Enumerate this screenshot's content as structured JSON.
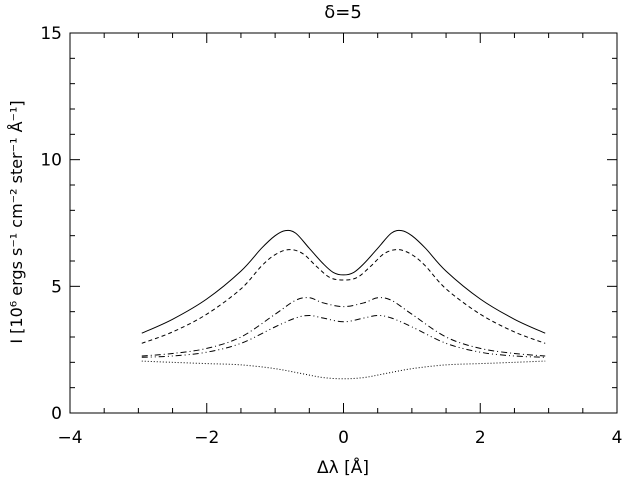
{
  "chart_data": {
    "type": "line",
    "title": "δ=5",
    "xlabel": "Δλ [Å]",
    "ylabel": "I [10⁶ ergs s⁻¹ cm⁻² ster⁻¹ Å⁻¹]",
    "xlim": [
      -4,
      4
    ],
    "ylim": [
      0,
      15
    ],
    "xticks": [
      -4,
      -2,
      0,
      2,
      4
    ],
    "xtick_labels": [
      "−4",
      "−2",
      "0",
      "2",
      "4"
    ],
    "yticks": [
      0,
      5,
      10,
      15
    ],
    "ytick_labels": [
      "0",
      "5",
      "10",
      "15"
    ],
    "grid": false,
    "legend": "none",
    "series": [
      {
        "style": "solid",
        "x": [
          -2.95,
          -2.5,
          -2.0,
          -1.5,
          -1.2,
          -1.0,
          -0.85,
          -0.7,
          -0.5,
          -0.3,
          -0.15,
          0.0,
          0.15,
          0.3,
          0.5,
          0.7,
          0.85,
          1.0,
          1.2,
          1.5,
          2.0,
          2.5,
          2.95
        ],
        "y": [
          3.15,
          3.7,
          4.5,
          5.6,
          6.5,
          7.0,
          7.2,
          7.1,
          6.5,
          5.9,
          5.55,
          5.45,
          5.55,
          5.9,
          6.5,
          7.1,
          7.2,
          7.0,
          6.5,
          5.6,
          4.5,
          3.7,
          3.15
        ]
      },
      {
        "style": "dashed",
        "x": [
          -2.95,
          -2.5,
          -2.0,
          -1.5,
          -1.2,
          -1.0,
          -0.8,
          -0.6,
          -0.4,
          -0.2,
          0.0,
          0.2,
          0.4,
          0.6,
          0.8,
          1.0,
          1.2,
          1.5,
          2.0,
          2.5,
          2.95
        ],
        "y": [
          2.75,
          3.2,
          3.9,
          4.9,
          5.8,
          6.25,
          6.45,
          6.3,
          5.8,
          5.35,
          5.25,
          5.35,
          5.8,
          6.3,
          6.45,
          6.25,
          5.8,
          4.9,
          3.9,
          3.2,
          2.75
        ]
      },
      {
        "style": "dash-dot",
        "x": [
          -2.95,
          -2.5,
          -2.0,
          -1.5,
          -1.0,
          -0.7,
          -0.5,
          -0.3,
          0.0,
          0.3,
          0.5,
          0.7,
          1.0,
          1.5,
          2.0,
          2.5,
          2.95
        ],
        "y": [
          2.25,
          2.35,
          2.55,
          3.0,
          3.9,
          4.45,
          4.55,
          4.35,
          4.2,
          4.35,
          4.55,
          4.45,
          3.9,
          3.0,
          2.55,
          2.35,
          2.25
        ]
      },
      {
        "style": "dash-dot-dot",
        "x": [
          -2.95,
          -2.5,
          -2.0,
          -1.5,
          -1.0,
          -0.7,
          -0.5,
          -0.3,
          0.0,
          0.3,
          0.5,
          0.7,
          1.0,
          1.5,
          2.0,
          2.5,
          2.95
        ],
        "y": [
          2.2,
          2.25,
          2.4,
          2.75,
          3.4,
          3.75,
          3.85,
          3.75,
          3.6,
          3.75,
          3.85,
          3.75,
          3.4,
          2.75,
          2.4,
          2.25,
          2.2
        ]
      },
      {
        "style": "dotted",
        "x": [
          -2.95,
          -2.5,
          -2.0,
          -1.5,
          -1.0,
          -0.6,
          -0.3,
          0.0,
          0.3,
          0.6,
          1.0,
          1.5,
          2.0,
          2.5,
          2.95
        ],
        "y": [
          2.05,
          2.0,
          1.95,
          1.9,
          1.75,
          1.55,
          1.4,
          1.35,
          1.4,
          1.55,
          1.75,
          1.9,
          1.95,
          2.0,
          2.05
        ]
      }
    ]
  }
}
